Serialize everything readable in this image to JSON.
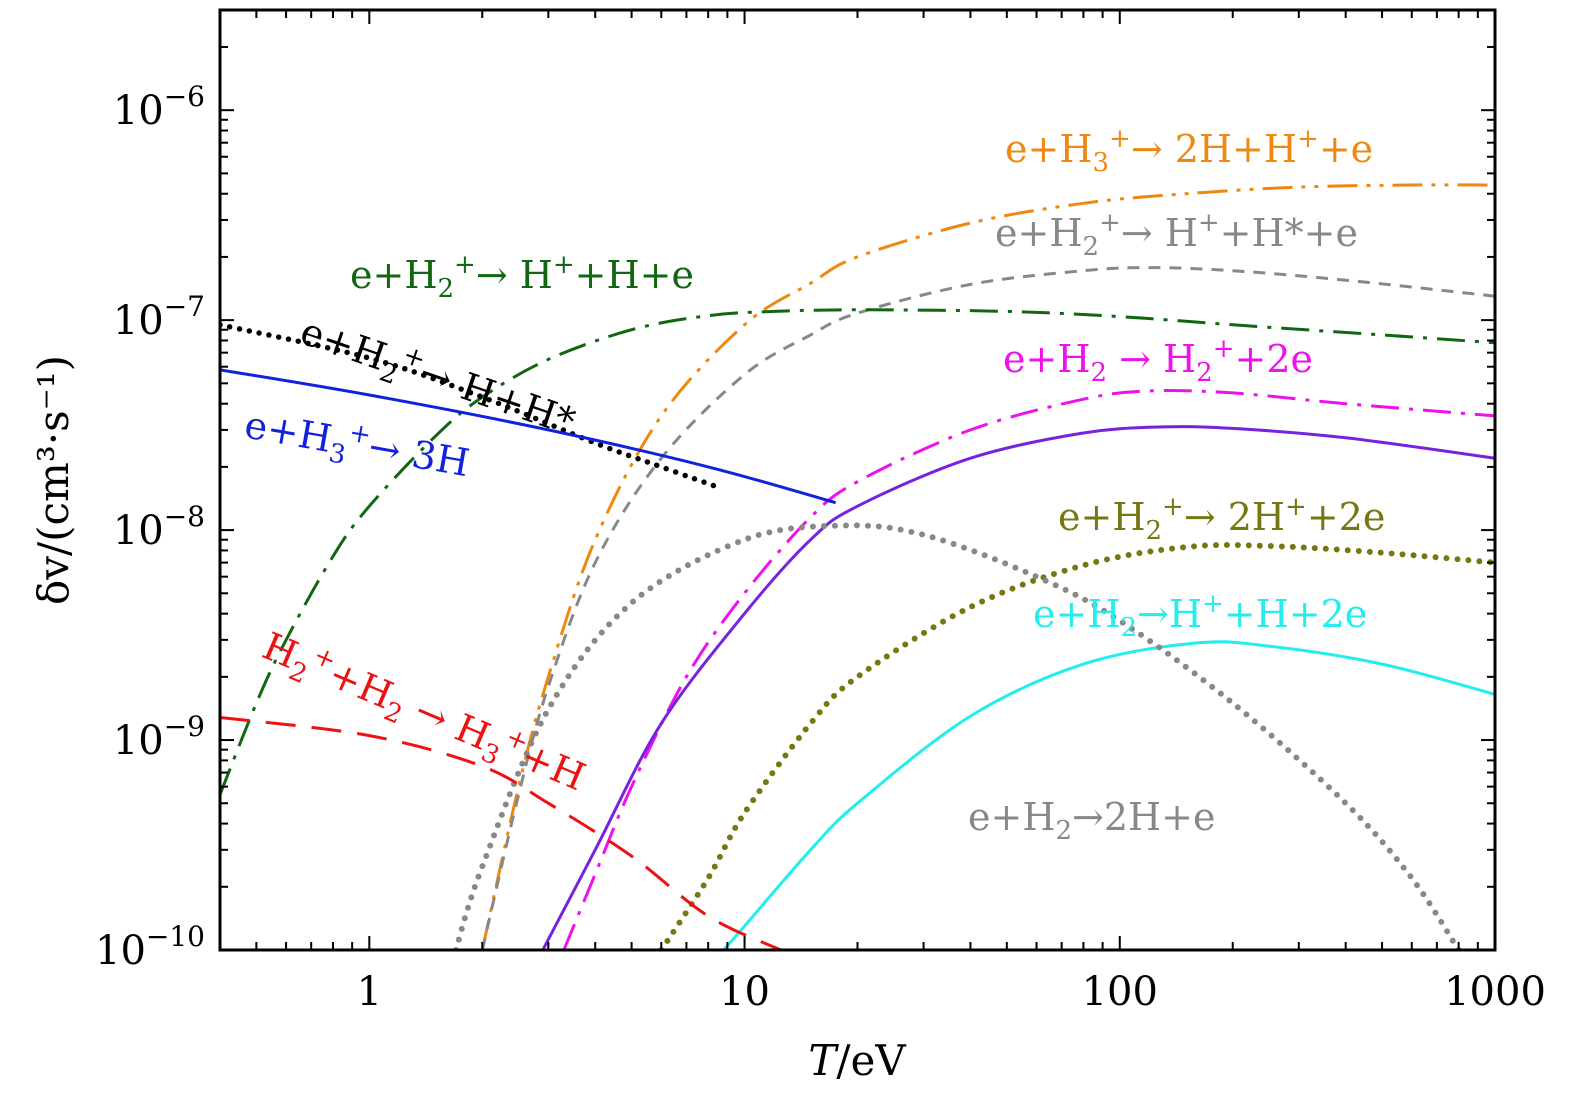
{
  "chart_data": {
    "type": "line",
    "xlabel_var": "T",
    "xlabel_unit": "/eV",
    "ylabel": "δv/(cm³·s⁻¹)",
    "xscale": "log",
    "yscale": "log",
    "xlim": [
      0.4,
      1000
    ],
    "ylim": [
      1e-10,
      3e-06
    ],
    "x_ticks": [
      {
        "value": 1,
        "label": "1"
      },
      {
        "value": 10,
        "label": "10"
      },
      {
        "value": 100,
        "label": "100"
      },
      {
        "value": 1000,
        "label": "1000"
      }
    ],
    "y_ticks": [
      {
        "value": 1e-10,
        "mant": "10",
        "exp": "−10"
      },
      {
        "value": 1e-09,
        "mant": "10",
        "exp": "−9"
      },
      {
        "value": 1e-08,
        "mant": "10",
        "exp": "−8"
      },
      {
        "value": 1e-07,
        "mant": "10",
        "exp": "−7"
      },
      {
        "value": 1e-06,
        "mant": "10",
        "exp": "−6"
      }
    ],
    "grid": false,
    "legend": "none",
    "series": [
      {
        "color": "#ee8811",
        "dash": "dashdotdot",
        "points": [
          [
            2.0,
            1e-10
          ],
          [
            2.5,
            6e-10
          ],
          [
            3,
            2e-09
          ],
          [
            4,
            9e-09
          ],
          [
            6,
            3.5e-08
          ],
          [
            10,
            9.5e-08
          ],
          [
            15,
            1.5e-07
          ],
          [
            20,
            2e-07
          ],
          [
            40,
            2.9e-07
          ],
          [
            80,
            3.6e-07
          ],
          [
            150,
            4e-07
          ],
          [
            300,
            4.3e-07
          ],
          [
            600,
            4.4e-07
          ],
          [
            1000,
            4.4e-07
          ]
        ]
      },
      {
        "color": "#888888",
        "dash": "dashed",
        "points": [
          [
            2.0,
            1e-10
          ],
          [
            2.5,
            5.5e-10
          ],
          [
            3,
            1.8e-09
          ],
          [
            4,
            7e-09
          ],
          [
            6,
            2.2e-08
          ],
          [
            10,
            5.5e-08
          ],
          [
            15,
            8.5e-08
          ],
          [
            20,
            1.08e-07
          ],
          [
            40,
            1.48e-07
          ],
          [
            80,
            1.72e-07
          ],
          [
            120,
            1.78e-07
          ],
          [
            200,
            1.72e-07
          ],
          [
            400,
            1.55e-07
          ],
          [
            1000,
            1.3e-07
          ]
        ]
      },
      {
        "color": "#116611",
        "dash": "dashdot",
        "points": [
          [
            0.4,
            5.5e-10
          ],
          [
            0.5,
            1.5e-09
          ],
          [
            0.6,
            3e-09
          ],
          [
            0.8,
            7.5e-09
          ],
          [
            1,
            1.3e-08
          ],
          [
            1.5,
            2.8e-08
          ],
          [
            2,
            4.3e-08
          ],
          [
            3,
            6.5e-08
          ],
          [
            5,
            9e-08
          ],
          [
            8,
            1.05e-07
          ],
          [
            12,
            1.1e-07
          ],
          [
            20,
            1.12e-07
          ],
          [
            50,
            1.1e-07
          ],
          [
            100,
            1.04e-07
          ],
          [
            200,
            9.5e-08
          ],
          [
            500,
            8.5e-08
          ],
          [
            1000,
            7.8e-08
          ]
        ]
      },
      {
        "color": "#ee11ee",
        "dash": "dashdot",
        "points": [
          [
            3.3,
            1e-10
          ],
          [
            4,
            2.3e-10
          ],
          [
            5,
            6e-10
          ],
          [
            7,
            2e-09
          ],
          [
            10,
            5e-09
          ],
          [
            15,
            1.15e-08
          ],
          [
            20,
            1.7e-08
          ],
          [
            40,
            3e-08
          ],
          [
            80,
            4.2e-08
          ],
          [
            120,
            4.6e-08
          ],
          [
            200,
            4.5e-08
          ],
          [
            400,
            4e-08
          ],
          [
            1000,
            3.5e-08
          ]
        ]
      },
      {
        "color": "#7722dd",
        "dash": "solid",
        "points": [
          [
            2.9,
            1e-10
          ],
          [
            4,
            3e-10
          ],
          [
            6,
            1.2e-09
          ],
          [
            10,
            4e-09
          ],
          [
            15,
            9e-09
          ],
          [
            20,
            1.3e-08
          ],
          [
            40,
            2.2e-08
          ],
          [
            80,
            2.9e-08
          ],
          [
            130,
            3.1e-08
          ],
          [
            200,
            3.05e-08
          ],
          [
            400,
            2.75e-08
          ],
          [
            1000,
            2.2e-08
          ]
        ]
      },
      {
        "color": "#777711",
        "dash": "dotted-thick",
        "points": [
          [
            6,
            1e-10
          ],
          [
            8,
            2.2e-10
          ],
          [
            10,
            4.5e-10
          ],
          [
            15,
            1.2e-09
          ],
          [
            20,
            2e-09
          ],
          [
            40,
            4.3e-09
          ],
          [
            80,
            6.8e-09
          ],
          [
            150,
            8.3e-09
          ],
          [
            250,
            8.4e-09
          ],
          [
            500,
            7.8e-09
          ],
          [
            1000,
            7e-09
          ]
        ]
      },
      {
        "color": "#22eeee",
        "dash": "solid",
        "points": [
          [
            8.8,
            1e-10
          ],
          [
            10,
            1.3e-10
          ],
          [
            15,
            3e-10
          ],
          [
            20,
            5e-10
          ],
          [
            40,
            1.3e-09
          ],
          [
            80,
            2.3e-09
          ],
          [
            160,
            2.9e-09
          ],
          [
            250,
            2.8e-09
          ],
          [
            500,
            2.3e-09
          ],
          [
            1000,
            1.65e-09
          ]
        ]
      },
      {
        "color": "#888888",
        "dash": "dotted-thick",
        "points": [
          [
            1.7,
            1e-10
          ],
          [
            2,
            2.5e-10
          ],
          [
            3,
            1.4e-09
          ],
          [
            5,
            4.5e-09
          ],
          [
            10,
            9e-09
          ],
          [
            18,
            1.05e-08
          ],
          [
            30,
            9.5e-09
          ],
          [
            60,
            6e-09
          ],
          [
            100,
            3.7e-09
          ],
          [
            200,
            1.5e-09
          ],
          [
            400,
            5e-10
          ],
          [
            600,
            2.2e-10
          ],
          [
            800,
            1e-10
          ]
        ]
      },
      {
        "color": "#000000",
        "dash": "dotted-black",
        "points": [
          [
            0.4,
            9.5e-08
          ],
          [
            1,
            6.6e-08
          ],
          [
            2,
            4.3e-08
          ],
          [
            4,
            2.6e-08
          ],
          [
            6,
            2e-08
          ],
          [
            8.5,
            1.6e-08
          ]
        ]
      },
      {
        "color": "#1122dd",
        "dash": "solid",
        "points": [
          [
            0.4,
            5.8e-08
          ],
          [
            1,
            4.4e-08
          ],
          [
            3,
            3e-08
          ],
          [
            8,
            2e-08
          ],
          [
            17.5,
            1.35e-08
          ]
        ]
      },
      {
        "color": "#ee1111",
        "dash": "longdash",
        "points": [
          [
            0.4,
            1.28e-09
          ],
          [
            1,
            1.05e-09
          ],
          [
            2,
            7.5e-10
          ],
          [
            3,
            5e-10
          ],
          [
            5,
            2.8e-10
          ],
          [
            8,
            1.45e-10
          ],
          [
            12.5,
            1e-10
          ]
        ]
      }
    ],
    "annotations": [
      {
        "color": "#ee8811",
        "parts": [
          {
            "t": "e+H"
          },
          {
            "t": "3",
            "sub": true
          },
          {
            "t": "+",
            "sup": true
          },
          {
            "t": "→ 2H+H"
          },
          {
            "t": "+",
            "sup": true
          },
          {
            "t": "+e"
          }
        ]
      },
      {
        "color": "#888888",
        "parts": [
          {
            "t": "e+H"
          },
          {
            "t": "2",
            "sub": true
          },
          {
            "t": "+",
            "sup": true
          },
          {
            "t": "→ H"
          },
          {
            "t": "+",
            "sup": true
          },
          {
            "t": "+H*+e"
          }
        ]
      },
      {
        "color": "#116611",
        "parts": [
          {
            "t": "e+H"
          },
          {
            "t": "2",
            "sub": true
          },
          {
            "t": "+",
            "sup": true
          },
          {
            "t": "→ H"
          },
          {
            "t": "+",
            "sup": true
          },
          {
            "t": "+H+e"
          }
        ]
      },
      {
        "color": "#000000",
        "parts": [
          {
            "t": "e+H"
          },
          {
            "t": "2",
            "sub": true
          },
          {
            "t": "+",
            "sup": true
          },
          {
            "t": "→ H+H*"
          }
        ]
      },
      {
        "color": "#1122dd",
        "parts": [
          {
            "t": "e+H"
          },
          {
            "t": "3",
            "sub": true
          },
          {
            "t": "+",
            "sup": true
          },
          {
            "t": "→ 3H"
          }
        ]
      },
      {
        "color": "#ee11ee",
        "parts": [
          {
            "t": "e+H"
          },
          {
            "t": "2",
            "sub": true
          },
          {
            "t": " → H"
          },
          {
            "t": "2",
            "sub": true
          },
          {
            "t": "+",
            "sup": true
          },
          {
            "t": "+2e"
          }
        ]
      },
      {
        "color": "#777711",
        "parts": [
          {
            "t": "e+H"
          },
          {
            "t": "2",
            "sub": true
          },
          {
            "t": "+",
            "sup": true
          },
          {
            "t": "→ 2H"
          },
          {
            "t": "+",
            "sup": true
          },
          {
            "t": "+2e"
          }
        ]
      },
      {
        "color": "#22eeee",
        "parts": [
          {
            "t": "e+H"
          },
          {
            "t": "2",
            "sub": true
          },
          {
            "t": "→H"
          },
          {
            "t": "+",
            "sup": true
          },
          {
            "t": "+H+2e"
          }
        ]
      },
      {
        "color": "#ee1111",
        "parts": [
          {
            "t": "H"
          },
          {
            "t": "2",
            "sub": true
          },
          {
            "t": "+",
            "sup": true
          },
          {
            "t": "+H"
          },
          {
            "t": "2",
            "sub": true
          },
          {
            "t": " → H"
          },
          {
            "t": "3",
            "sub": true
          },
          {
            "t": "+",
            "sup": true
          },
          {
            "t": "+H"
          }
        ]
      },
      {
        "color": "#888888",
        "parts": [
          {
            "t": "e+H"
          },
          {
            "t": "2",
            "sub": true
          },
          {
            "t": "→2H+e"
          }
        ]
      }
    ]
  }
}
